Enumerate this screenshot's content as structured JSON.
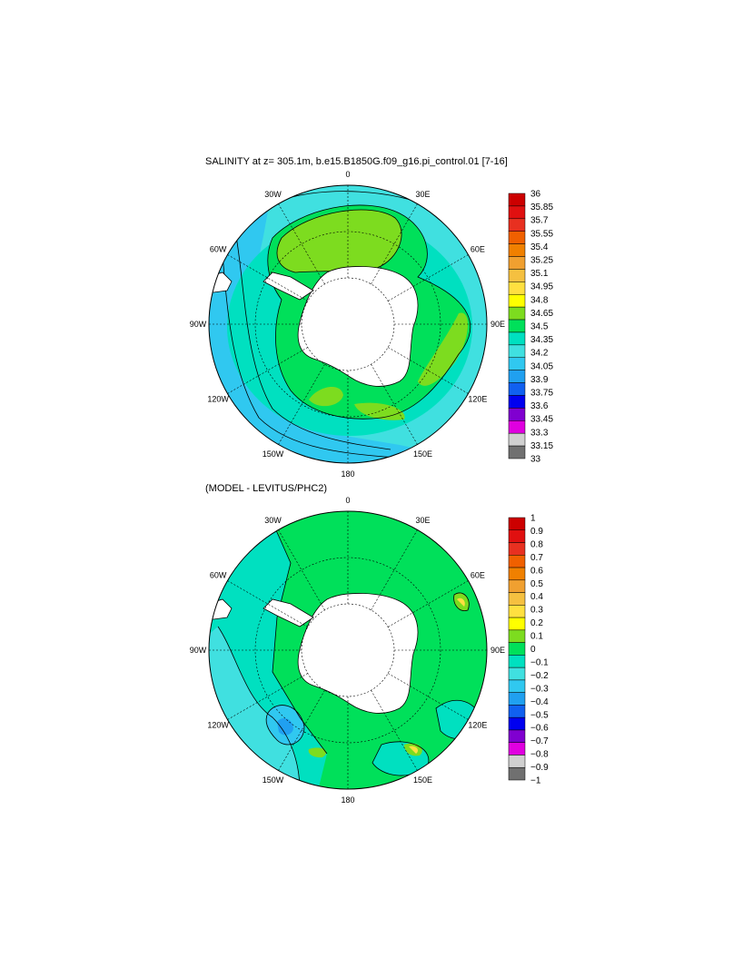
{
  "panels": [
    {
      "title": "SALINITY at z= 305.1m, b.e15.B1850G.f09_g16.pi_control.01 [7-16]",
      "lon_labels": [
        "0",
        "30E",
        "60E",
        "90E",
        "120E",
        "150E",
        "180",
        "150W",
        "120W",
        "90W",
        "60W",
        "30W"
      ],
      "colorbar": {
        "labels": [
          "36",
          "35.85",
          "35.7",
          "35.55",
          "35.4",
          "35.25",
          "35.1",
          "34.95",
          "34.8",
          "34.65",
          "34.5",
          "34.35",
          "34.2",
          "34.05",
          "33.9",
          "33.75",
          "33.6",
          "33.45",
          "33.3",
          "33.15",
          "33"
        ],
        "colors": [
          "#cc0000",
          "#e01010",
          "#e83020",
          "#f06000",
          "#f08000",
          "#f0a030",
          "#f5c040",
          "#ffe040",
          "#ffff00",
          "#7ddc1f",
          "#00e05a",
          "#00e0c0",
          "#40e0e0",
          "#30c8f0",
          "#20a0f0",
          "#1060f0",
          "#0000f0",
          "#8000d0",
          "#e000e0",
          "#d0d0d0",
          "#707070"
        ]
      },
      "regions": [
        {
          "name": "ice-shelf",
          "color": "#ffffff"
        },
        {
          "name": "south-atlantic-high",
          "color": "#7ddc1f"
        },
        {
          "name": "indian-ocean-band",
          "color": "#7ddc1f"
        },
        {
          "name": "ross-sea-patch",
          "color": "#7ddc1f"
        }
      ]
    },
    {
      "title": "(MODEL - LEVITUS/PHC2)",
      "lon_labels": [
        "0",
        "30E",
        "60E",
        "90E",
        "120E",
        "150E",
        "180",
        "150W",
        "120W",
        "90W",
        "60W",
        "30W"
      ],
      "colorbar": {
        "labels": [
          "1",
          "0.9",
          "0.8",
          "0.7",
          "0.6",
          "0.5",
          "0.4",
          "0.3",
          "0.2",
          "0.1",
          "0",
          "−0.1",
          "−0.2",
          "−0.3",
          "−0.4",
          "−0.5",
          "−0.6",
          "−0.7",
          "−0.8",
          "−0.9",
          "−1"
        ],
        "colors": [
          "#cc0000",
          "#e01010",
          "#e83020",
          "#f06000",
          "#f08000",
          "#f0a030",
          "#f5c040",
          "#ffe040",
          "#ffff00",
          "#7ddc1f",
          "#00e05a",
          "#00e0c0",
          "#40e0e0",
          "#30c8f0",
          "#20a0f0",
          "#1060f0",
          "#0000f0",
          "#8000d0",
          "#e000e0",
          "#d0d0d0",
          "#707070"
        ]
      }
    }
  ]
}
